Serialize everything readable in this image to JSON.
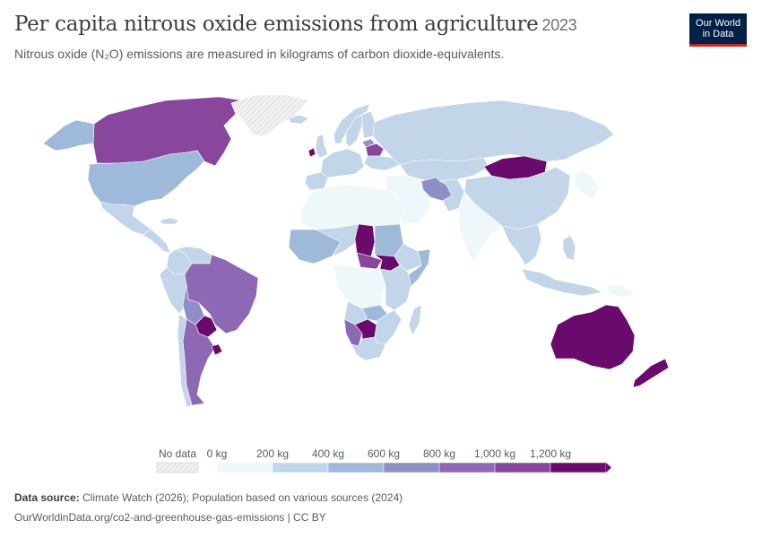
{
  "header": {
    "title": "Per capita nitrous oxide emissions from agriculture",
    "year": "2023",
    "subtitle": "Nitrous oxide (N₂O) emissions are measured in kilograms of carbon dioxide-equivalents."
  },
  "logo": {
    "line1": "Our World",
    "line2": "in Data"
  },
  "legend": {
    "no_data_label": "No data",
    "ticks": [
      "0 kg",
      "200 kg",
      "400 kg",
      "600 kg",
      "800 kg",
      "1,000 kg",
      "1,200 kg"
    ],
    "colors": [
      "#eef8fa",
      "#c3d5e8",
      "#9fb9da",
      "#8d8fc6",
      "#8d68b4",
      "#88479c",
      "#6b0a6d"
    ],
    "no_data_color": "#e6e6e6"
  },
  "footer": {
    "source_label": "Data source:",
    "source_text": "Climate Watch (2026); Population based on various sources (2024)",
    "url_text": "OurWorldinData.org/co2-and-greenhouse-gas-emissions | CC BY"
  },
  "map": {
    "countries": [
      {
        "name": "Canada",
        "band": 5
      },
      {
        "name": "Alaska (United States)",
        "band": 2
      },
      {
        "name": "United States",
        "band": 2
      },
      {
        "name": "Greenland",
        "band": -1
      },
      {
        "name": "Mexico",
        "band": 1
      },
      {
        "name": "Central America",
        "band": 1
      },
      {
        "name": "Cuba",
        "band": 1
      },
      {
        "name": "Colombia",
        "band": 1
      },
      {
        "name": "Venezuela",
        "band": 1
      },
      {
        "name": "Peru",
        "band": 1
      },
      {
        "name": "Brazil",
        "band": 4
      },
      {
        "name": "Bolivia",
        "band": 3
      },
      {
        "name": "Paraguay",
        "band": 6
      },
      {
        "name": "Argentina",
        "band": 4
      },
      {
        "name": "Chile",
        "band": 1
      },
      {
        "name": "Uruguay",
        "band": 6
      },
      {
        "name": "Iceland",
        "band": 1
      },
      {
        "name": "Ireland",
        "band": 6
      },
      {
        "name": "United Kingdom",
        "band": 1
      },
      {
        "name": "Norway",
        "band": 1
      },
      {
        "name": "Sweden",
        "band": 1
      },
      {
        "name": "Finland",
        "band": 1
      },
      {
        "name": "Western Europe",
        "band": 1
      },
      {
        "name": "Iberia",
        "band": 1
      },
      {
        "name": "Belarus",
        "band": 5
      },
      {
        "name": "Lithuania",
        "band": 3
      },
      {
        "name": "Ukraine",
        "band": 1
      },
      {
        "name": "Russia",
        "band": 1
      },
      {
        "name": "Kazakhstan",
        "band": 1
      },
      {
        "name": "Mongolia",
        "band": 6
      },
      {
        "name": "China",
        "band": 1
      },
      {
        "name": "Iran",
        "band": 3
      },
      {
        "name": "Middle East",
        "band": 0
      },
      {
        "name": "Afghanistan and Pakistan",
        "band": 1
      },
      {
        "name": "India",
        "band": 0
      },
      {
        "name": "Southeast Asia",
        "band": 1
      },
      {
        "name": "Japan and Korea",
        "band": 0
      },
      {
        "name": "Indonesia",
        "band": 1
      },
      {
        "name": "Papua New Guinea",
        "band": 0
      },
      {
        "name": "Philippines",
        "band": 1
      },
      {
        "name": "Australia",
        "band": 6
      },
      {
        "name": "New Zealand",
        "band": 6
      },
      {
        "name": "North Africa",
        "band": 0
      },
      {
        "name": "West Africa",
        "band": 2
      },
      {
        "name": "Mali and Niger",
        "band": 1
      },
      {
        "name": "Chad",
        "band": 6
      },
      {
        "name": "Sudan",
        "band": 2
      },
      {
        "name": "Central African Republic",
        "band": 5
      },
      {
        "name": "South Sudan",
        "band": 6
      },
      {
        "name": "Ethiopia",
        "band": 1
      },
      {
        "name": "Somalia",
        "band": 2
      },
      {
        "name": "Congo Basin",
        "band": 0
      },
      {
        "name": "East Africa",
        "band": 1
      },
      {
        "name": "Angola",
        "band": 1
      },
      {
        "name": "Zambia",
        "band": 2
      },
      {
        "name": "Namibia",
        "band": 4
      },
      {
        "name": "Botswana",
        "band": 6
      },
      {
        "name": "Zimbabwe and Mozambique",
        "band": 1
      },
      {
        "name": "South Africa",
        "band": 1
      },
      {
        "name": "Madagascar",
        "band": 1
      }
    ]
  }
}
